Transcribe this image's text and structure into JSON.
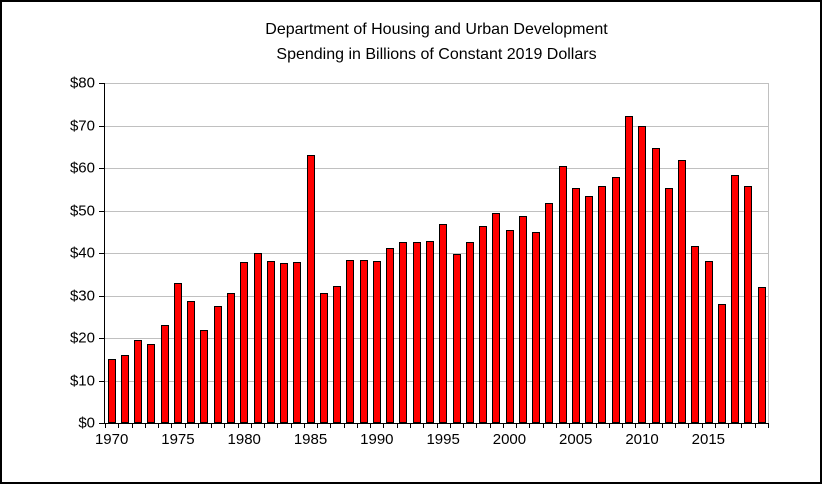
{
  "window": {
    "background_color": "#FFFFFF",
    "border_color": "#000000"
  },
  "chart_data": {
    "type": "bar",
    "title_line1": "Department of Housing and Urban Development",
    "title_line2": "Spending in Billions of Constant 2019 Dollars",
    "xlabel": "",
    "ylabel": "",
    "categories": [
      1970,
      1971,
      1972,
      1973,
      1974,
      1975,
      1976,
      1977,
      1978,
      1979,
      1980,
      1981,
      1982,
      1983,
      1984,
      1985,
      1986,
      1987,
      1988,
      1989,
      1990,
      1991,
      1992,
      1993,
      1994,
      1995,
      1996,
      1997,
      1998,
      1999,
      2000,
      2001,
      2002,
      2003,
      2004,
      2005,
      2006,
      2007,
      2008,
      2009,
      2010,
      2011,
      2012,
      2013,
      2014,
      2015,
      2016,
      2017,
      2018,
      2019
    ],
    "values": [
      15.1,
      16.1,
      19.5,
      18.5,
      23.0,
      33.0,
      28.8,
      22.0,
      27.5,
      30.7,
      38.0,
      40.0,
      38.2,
      37.7,
      37.9,
      63.1,
      30.5,
      32.3,
      38.3,
      38.4,
      38.1,
      41.2,
      42.6,
      42.5,
      42.8,
      46.8,
      39.8,
      42.6,
      46.4,
      49.5,
      45.5,
      48.8,
      44.9,
      51.7,
      60.5,
      55.4,
      53.3,
      55.7,
      58.0,
      72.3,
      70.0,
      64.8,
      55.2,
      61.9,
      41.7,
      38.2,
      28.1,
      58.4,
      55.8,
      32.0
    ],
    "ylim": [
      0,
      80
    ],
    "y_ticks": [
      0,
      10,
      20,
      30,
      40,
      50,
      60,
      70,
      80
    ],
    "y_tick_labels": [
      "$0",
      "$10",
      "$20",
      "$30",
      "$40",
      "$50",
      "$60",
      "$70",
      "$80"
    ],
    "x_tick_labels": [
      "1970",
      "1975",
      "1980",
      "1985",
      "1990",
      "1995",
      "2000",
      "2005",
      "2010",
      "2015"
    ],
    "grid": "horizontal",
    "legend": "none",
    "bar_color": "#FF0000",
    "bar_border_color": "#000000",
    "gridline_color": "#C0C0C0",
    "axis_color": "#000000"
  }
}
